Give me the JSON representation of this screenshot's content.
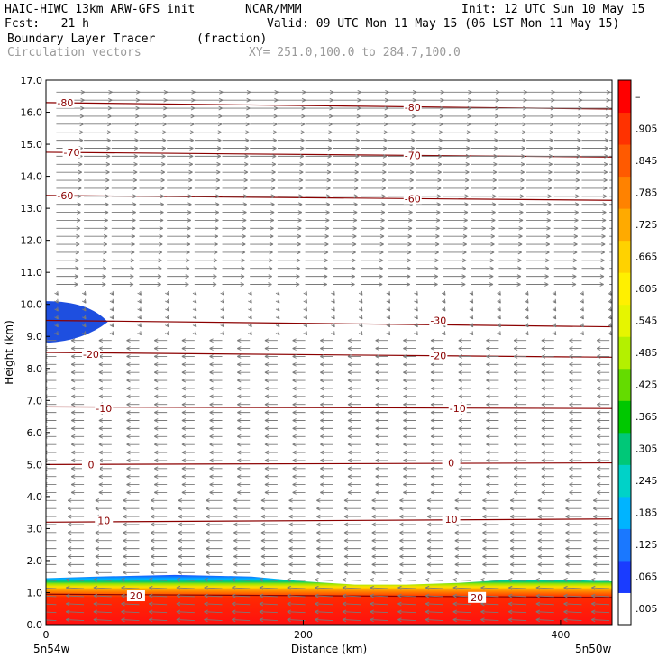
{
  "header": {
    "model": "HAIC-HIWC 13km ARW-GFS init",
    "org": "NCAR/MMM",
    "init": "Init: 12 UTC Sun 10 May 15",
    "fcst": "Fcst:   21 h",
    "valid": "Valid: 09 UTC Mon 11 May 15 (06 LST Mon 11 May 15)",
    "field1": "Boundary Layer Tracer",
    "field1_units": "(fraction)",
    "field2": "Circulation vectors",
    "xy": "XY= 251.0,100.0 to 284.7,100.0"
  },
  "footer": {
    "left_loc": "5n54w",
    "right_loc": "5n50w"
  },
  "colors": {
    "contour": "#8b0000",
    "vector": "#7a7a7a",
    "blob": "#1e4fe0",
    "tracer_high": "#ff1a1a"
  },
  "chart_data": {
    "type": "cross-section",
    "title": "Boundary Layer Tracer",
    "xlabel": "Distance (km)",
    "ylabel": "Height (km)",
    "xlim": [
      0,
      440
    ],
    "ylim": [
      0,
      17
    ],
    "xticks": [
      "0",
      "200",
      "400"
    ],
    "xtick_values": [
      0,
      200,
      400
    ],
    "yticks": [
      "0.0",
      "1.0",
      "2.0",
      "3.0",
      "4.0",
      "5.0",
      "6.0",
      "7.0",
      "8.0",
      "9.0",
      "10.0",
      "11.0",
      "12.0",
      "13.0",
      "14.0",
      "15.0",
      "16.0",
      "17.0"
    ],
    "colorbar": {
      "labels": [
        ".005",
        ".065",
        ".125",
        ".185",
        ".245",
        ".305",
        ".365",
        ".425",
        ".485",
        ".545",
        ".605",
        ".665",
        ".725",
        ".785",
        ".845",
        ".905",
        "–"
      ],
      "colors": [
        "#ffffff",
        "#1a3cff",
        "#1a78ff",
        "#00b4ff",
        "#00d2c8",
        "#00c878",
        "#00c800",
        "#64dc00",
        "#b4f000",
        "#e6f500",
        "#fff000",
        "#ffd200",
        "#ffaa00",
        "#ff8200",
        "#ff5a00",
        "#ff3200",
        "#ff0000"
      ]
    },
    "temperature_contours": [
      {
        "label": "-80",
        "value": -80,
        "heights": [
          16.3,
          16.1
        ]
      },
      {
        "label": "-70",
        "value": -70,
        "heights": [
          14.75,
          14.6
        ]
      },
      {
        "label": "-60",
        "value": -60,
        "heights": [
          13.4,
          13.25
        ]
      },
      {
        "label": "-30",
        "value": -30,
        "heights": [
          9.5,
          9.3
        ]
      },
      {
        "label": "-20",
        "value": -20,
        "heights": [
          8.5,
          8.35
        ]
      },
      {
        "label": "-10",
        "value": -10,
        "heights": [
          6.8,
          6.75
        ]
      },
      {
        "label": "0",
        "value": 0,
        "heights": [
          5.0,
          5.05
        ]
      },
      {
        "label": "10",
        "value": 10,
        "heights": [
          3.2,
          3.3
        ]
      },
      {
        "label": "20",
        "value": 20,
        "heights": [
          0.95,
          0.85
        ]
      }
    ],
    "contour_labels": [
      {
        "text": "-80",
        "x": 15,
        "y": 16.3
      },
      {
        "text": "-80",
        "x": 285,
        "y": 16.15
      },
      {
        "text": "-70",
        "x": 20,
        "y": 14.75
      },
      {
        "text": "-70",
        "x": 285,
        "y": 14.65
      },
      {
        "text": "-60",
        "x": 15,
        "y": 13.4
      },
      {
        "text": "-60",
        "x": 285,
        "y": 13.3
      },
      {
        "text": "-30",
        "x": 305,
        "y": 9.5
      },
      {
        "text": "-20",
        "x": 35,
        "y": 8.45
      },
      {
        "text": "-20",
        "x": 305,
        "y": 8.4
      },
      {
        "text": "-10",
        "x": 45,
        "y": 6.75
      },
      {
        "text": "-10",
        "x": 320,
        "y": 6.75
      },
      {
        "text": "0",
        "x": 35,
        "y": 5.0
      },
      {
        "text": "0",
        "x": 315,
        "y": 5.05
      },
      {
        "text": "10",
        "x": 45,
        "y": 3.25
      },
      {
        "text": "10",
        "x": 315,
        "y": 3.3
      },
      {
        "text": "20",
        "x": 70,
        "y": 0.9
      },
      {
        "text": "20",
        "x": 335,
        "y": 0.85
      }
    ],
    "tracer_top_km": [
      [
        0,
        1.45
      ],
      [
        40,
        1.5
      ],
      [
        100,
        1.55
      ],
      [
        160,
        1.5
      ],
      [
        200,
        1.35
      ],
      [
        240,
        1.25
      ],
      [
        280,
        1.25
      ],
      [
        320,
        1.3
      ],
      [
        360,
        1.4
      ],
      [
        400,
        1.4
      ],
      [
        440,
        1.35
      ]
    ],
    "blob": {
      "x_range_km": [
        0,
        48
      ],
      "height_km": [
        8.8,
        10.1
      ],
      "peak_height_km": 9.45
    },
    "wind_regimes": [
      {
        "from_km": 10.4,
        "to_km": 17.0,
        "direction": "eastward",
        "strength": "strong"
      },
      {
        "from_km": 9.0,
        "to_km": 10.4,
        "direction": "calm",
        "strength": "weak"
      },
      {
        "from_km": 1.6,
        "to_km": 9.0,
        "direction": "westward",
        "strength": "moderate"
      },
      {
        "from_km": 0.0,
        "to_km": 1.6,
        "direction": "westward",
        "strength": "moderate"
      }
    ]
  }
}
